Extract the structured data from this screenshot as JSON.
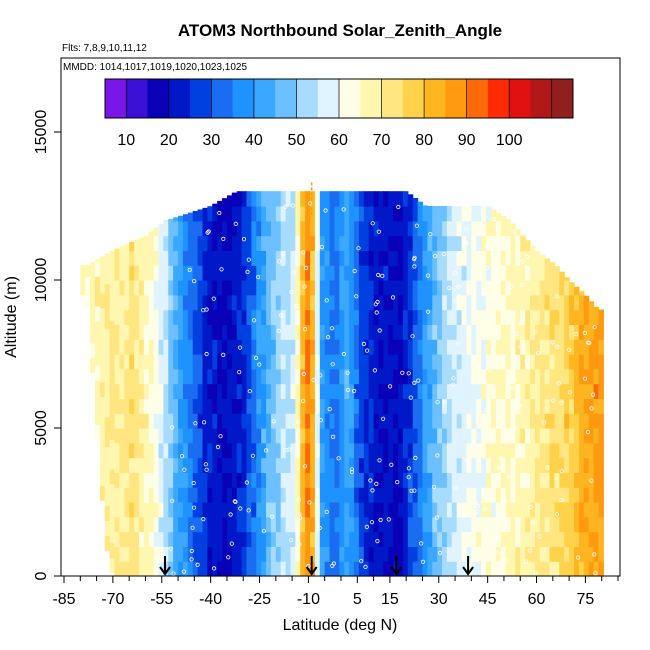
{
  "chart_data": {
    "type": "heatmap",
    "title": "ATOM3 Northbound Solar_Zenith_Angle",
    "subtitle_flights": "Flts: 7,8,9,10,11,12",
    "subtitle_dates": "MMDD: 1014,1017,1019,1020,1023,1025",
    "xlabel": "Latitude (deg N)",
    "ylabel": "Altitude (m)",
    "xlim": [
      -85,
      85
    ],
    "ylim": [
      0,
      17500
    ],
    "x_ticks": [
      -85,
      -70,
      -55,
      -40,
      -25,
      -10,
      5,
      15,
      30,
      45,
      60,
      75
    ],
    "x_minor_ticks": [
      -80,
      -75,
      -65,
      -60,
      -50,
      -45,
      -35,
      -30,
      -20,
      -15,
      -5,
      0,
      10,
      20,
      25,
      35,
      40,
      50,
      55,
      65,
      70,
      80,
      85
    ],
    "y_ticks": [
      0,
      5000,
      10000,
      15000
    ],
    "colorbar": {
      "tick_labels": [
        "10",
        "20",
        "30",
        "40",
        "50",
        "60",
        "70",
        "80",
        "90",
        "100"
      ],
      "min": 10,
      "max": 120,
      "colors": [
        "#7a16e8",
        "#3b10d6",
        "#0a00b8",
        "#0018c8",
        "#0040e0",
        "#1a6cf0",
        "#1e92ff",
        "#3aa8ff",
        "#6cc0ff",
        "#a8dcff",
        "#e0f4ff",
        "#ffffe8",
        "#fff7b0",
        "#ffe680",
        "#ffd24a",
        "#ffb520",
        "#ff9a10",
        "#ff6a08",
        "#ff2a00",
        "#e01010",
        "#b01818",
        "#902020"
      ]
    },
    "sza_profile": [
      {
        "lat": -80,
        "sza": 70
      },
      {
        "lat": -72,
        "sza": 74
      },
      {
        "lat": -64,
        "sza": 77
      },
      {
        "lat": -58,
        "sza": 70
      },
      {
        "lat": -54,
        "sza": 60
      },
      {
        "lat": -50,
        "sza": 48
      },
      {
        "lat": -45,
        "sza": 36
      },
      {
        "lat": -40,
        "sza": 27
      },
      {
        "lat": -35,
        "sza": 24
      },
      {
        "lat": -30,
        "sza": 30
      },
      {
        "lat": -26,
        "sza": 40
      },
      {
        "lat": -22,
        "sza": 52
      },
      {
        "lat": -18,
        "sza": 58
      },
      {
        "lat": -14,
        "sza": 62
      },
      {
        "lat": -11,
        "sza": 95
      },
      {
        "lat": -9,
        "sza": 92
      },
      {
        "lat": -6,
        "sza": 45
      },
      {
        "lat": -2,
        "sza": 38
      },
      {
        "lat": 2,
        "sza": 48
      },
      {
        "lat": 6,
        "sza": 34
      },
      {
        "lat": 10,
        "sza": 27
      },
      {
        "lat": 14,
        "sza": 26
      },
      {
        "lat": 18,
        "sza": 24
      },
      {
        "lat": 22,
        "sza": 34
      },
      {
        "lat": 26,
        "sza": 45
      },
      {
        "lat": 30,
        "sza": 55
      },
      {
        "lat": 34,
        "sza": 60
      },
      {
        "lat": 38,
        "sza": 64
      },
      {
        "lat": 44,
        "sza": 67
      },
      {
        "lat": 50,
        "sza": 70
      },
      {
        "lat": 56,
        "sza": 72
      },
      {
        "lat": 62,
        "sza": 76
      },
      {
        "lat": 68,
        "sza": 80
      },
      {
        "lat": 72,
        "sza": 85
      },
      {
        "lat": 76,
        "sza": 90
      },
      {
        "lat": 79,
        "sza": 92
      }
    ],
    "ceiling_profile": [
      {
        "lat": -78,
        "alt": 10500
      },
      {
        "lat": -70,
        "alt": 11000
      },
      {
        "lat": -60,
        "alt": 11500
      },
      {
        "lat": -54,
        "alt": 12000
      },
      {
        "lat": -40,
        "alt": 12500
      },
      {
        "lat": -32,
        "alt": 13000
      },
      {
        "lat": -10,
        "alt": 13000
      },
      {
        "lat": 20,
        "alt": 13000
      },
      {
        "lat": 26,
        "alt": 12500
      },
      {
        "lat": 45,
        "alt": 12500
      },
      {
        "lat": 52,
        "alt": 12000
      },
      {
        "lat": 60,
        "alt": 11000
      },
      {
        "lat": 66,
        "alt": 10500
      },
      {
        "lat": 70,
        "alt": 10000
      },
      {
        "lat": 75,
        "alt": 9500
      },
      {
        "lat": 79,
        "alt": 9000
      }
    ],
    "floor_profile": [
      {
        "lat": -78,
        "alt": 9500
      },
      {
        "lat": -74,
        "alt": 3500
      },
      {
        "lat": -72,
        "alt": 1000
      },
      {
        "lat": -70,
        "alt": 0
      },
      {
        "lat": 79,
        "alt": 0
      }
    ],
    "profile_arrows_lat": [
      -54,
      -9,
      17,
      39
    ],
    "orange_marker_lat": -9
  }
}
